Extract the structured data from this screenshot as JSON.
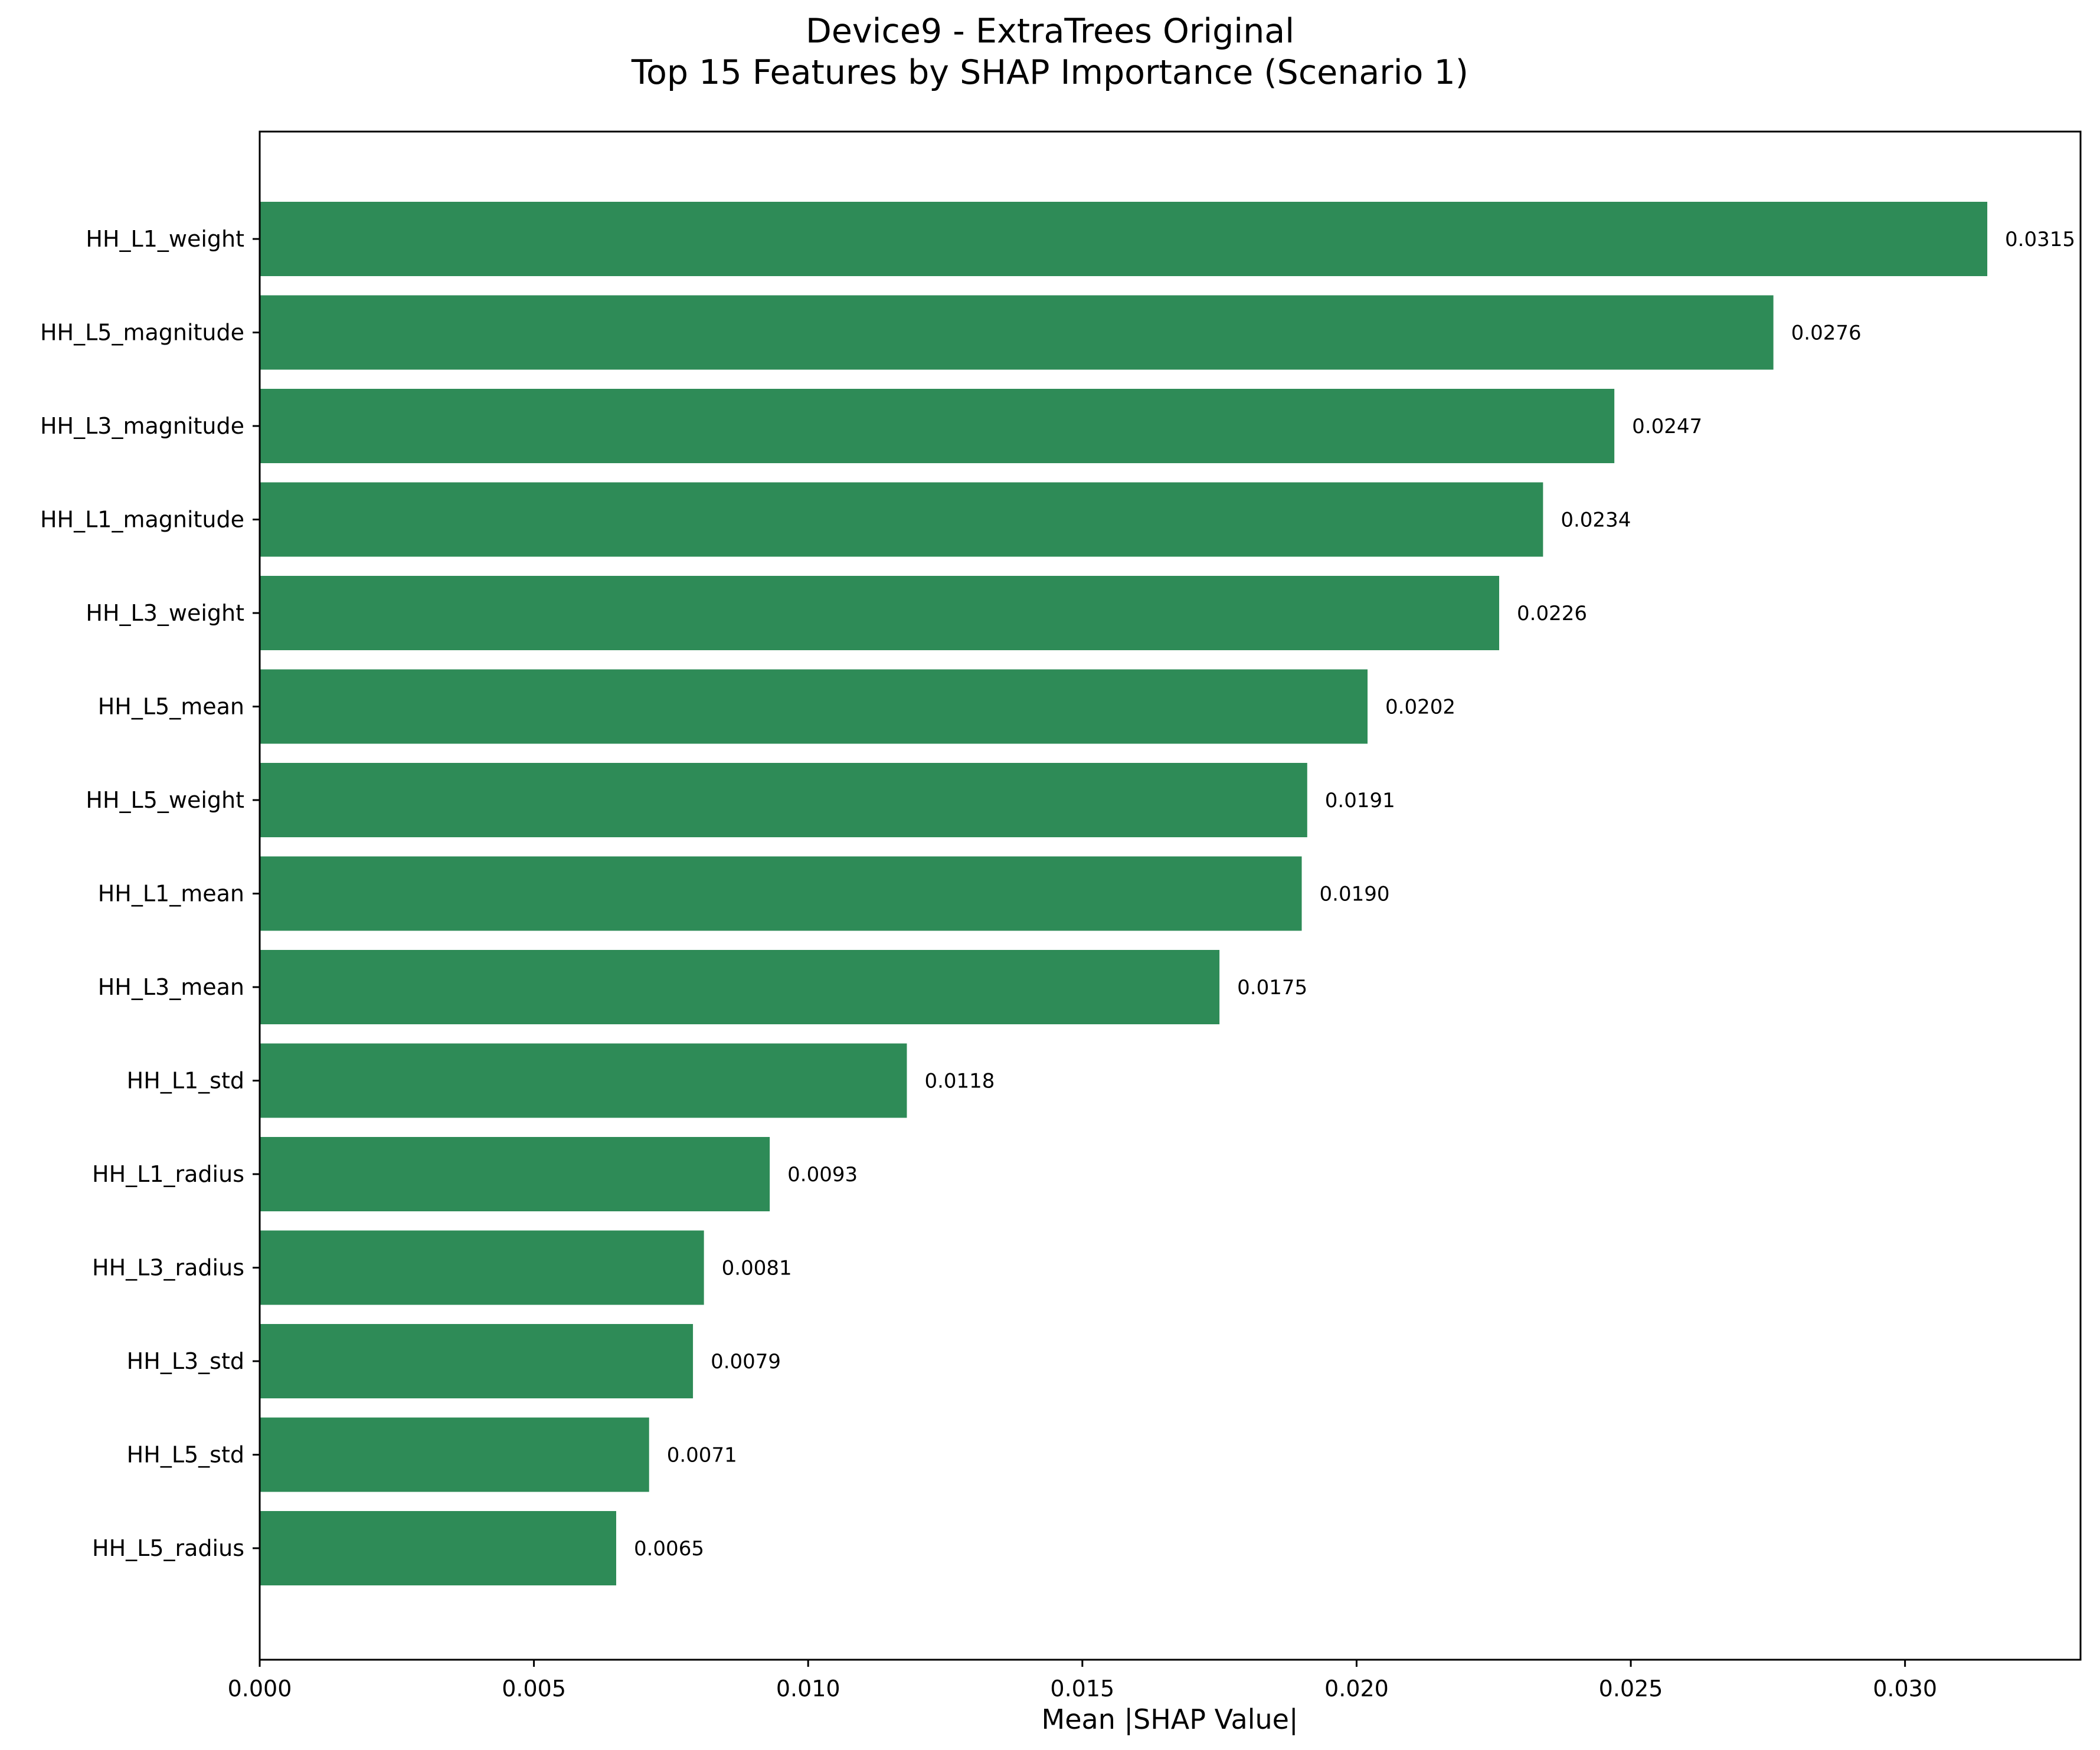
{
  "chart_data": {
    "type": "bar",
    "orientation": "horizontal",
    "title_line1": "Device9 - ExtraTrees Original",
    "title_line2": "Top 15 Features by SHAP Importance (Scenario 1)",
    "xlabel": "Mean |SHAP Value|",
    "ylabel": "",
    "xlim": [
      0,
      0.0332
    ],
    "xticks": [
      "0.000",
      "0.005",
      "0.010",
      "0.015",
      "0.020",
      "0.025",
      "0.030"
    ],
    "xtick_values": [
      0,
      0.005,
      0.01,
      0.015,
      0.02,
      0.025,
      0.03
    ],
    "grid": false,
    "legend": "none",
    "bar_color": "#2e8b57",
    "categories": [
      "HH_L1_weight",
      "HH_L5_magnitude",
      "HH_L3_magnitude",
      "HH_L1_magnitude",
      "HH_L3_weight",
      "HH_L5_mean",
      "HH_L5_weight",
      "HH_L1_mean",
      "HH_L3_mean",
      "HH_L1_std",
      "HH_L1_radius",
      "HH_L3_radius",
      "HH_L3_std",
      "HH_L5_std",
      "HH_L5_radius"
    ],
    "values": [
      0.0315,
      0.0276,
      0.0247,
      0.0234,
      0.0226,
      0.0202,
      0.0191,
      0.019,
      0.0175,
      0.0118,
      0.0093,
      0.0081,
      0.0079,
      0.0071,
      0.0065
    ],
    "value_labels": [
      "0.0315",
      "0.0276",
      "0.0247",
      "0.0234",
      "0.0226",
      "0.0202",
      "0.0191",
      "0.0190",
      "0.0175",
      "0.0118",
      "0.0093",
      "0.0081",
      "0.0079",
      "0.0071",
      "0.0065"
    ]
  }
}
